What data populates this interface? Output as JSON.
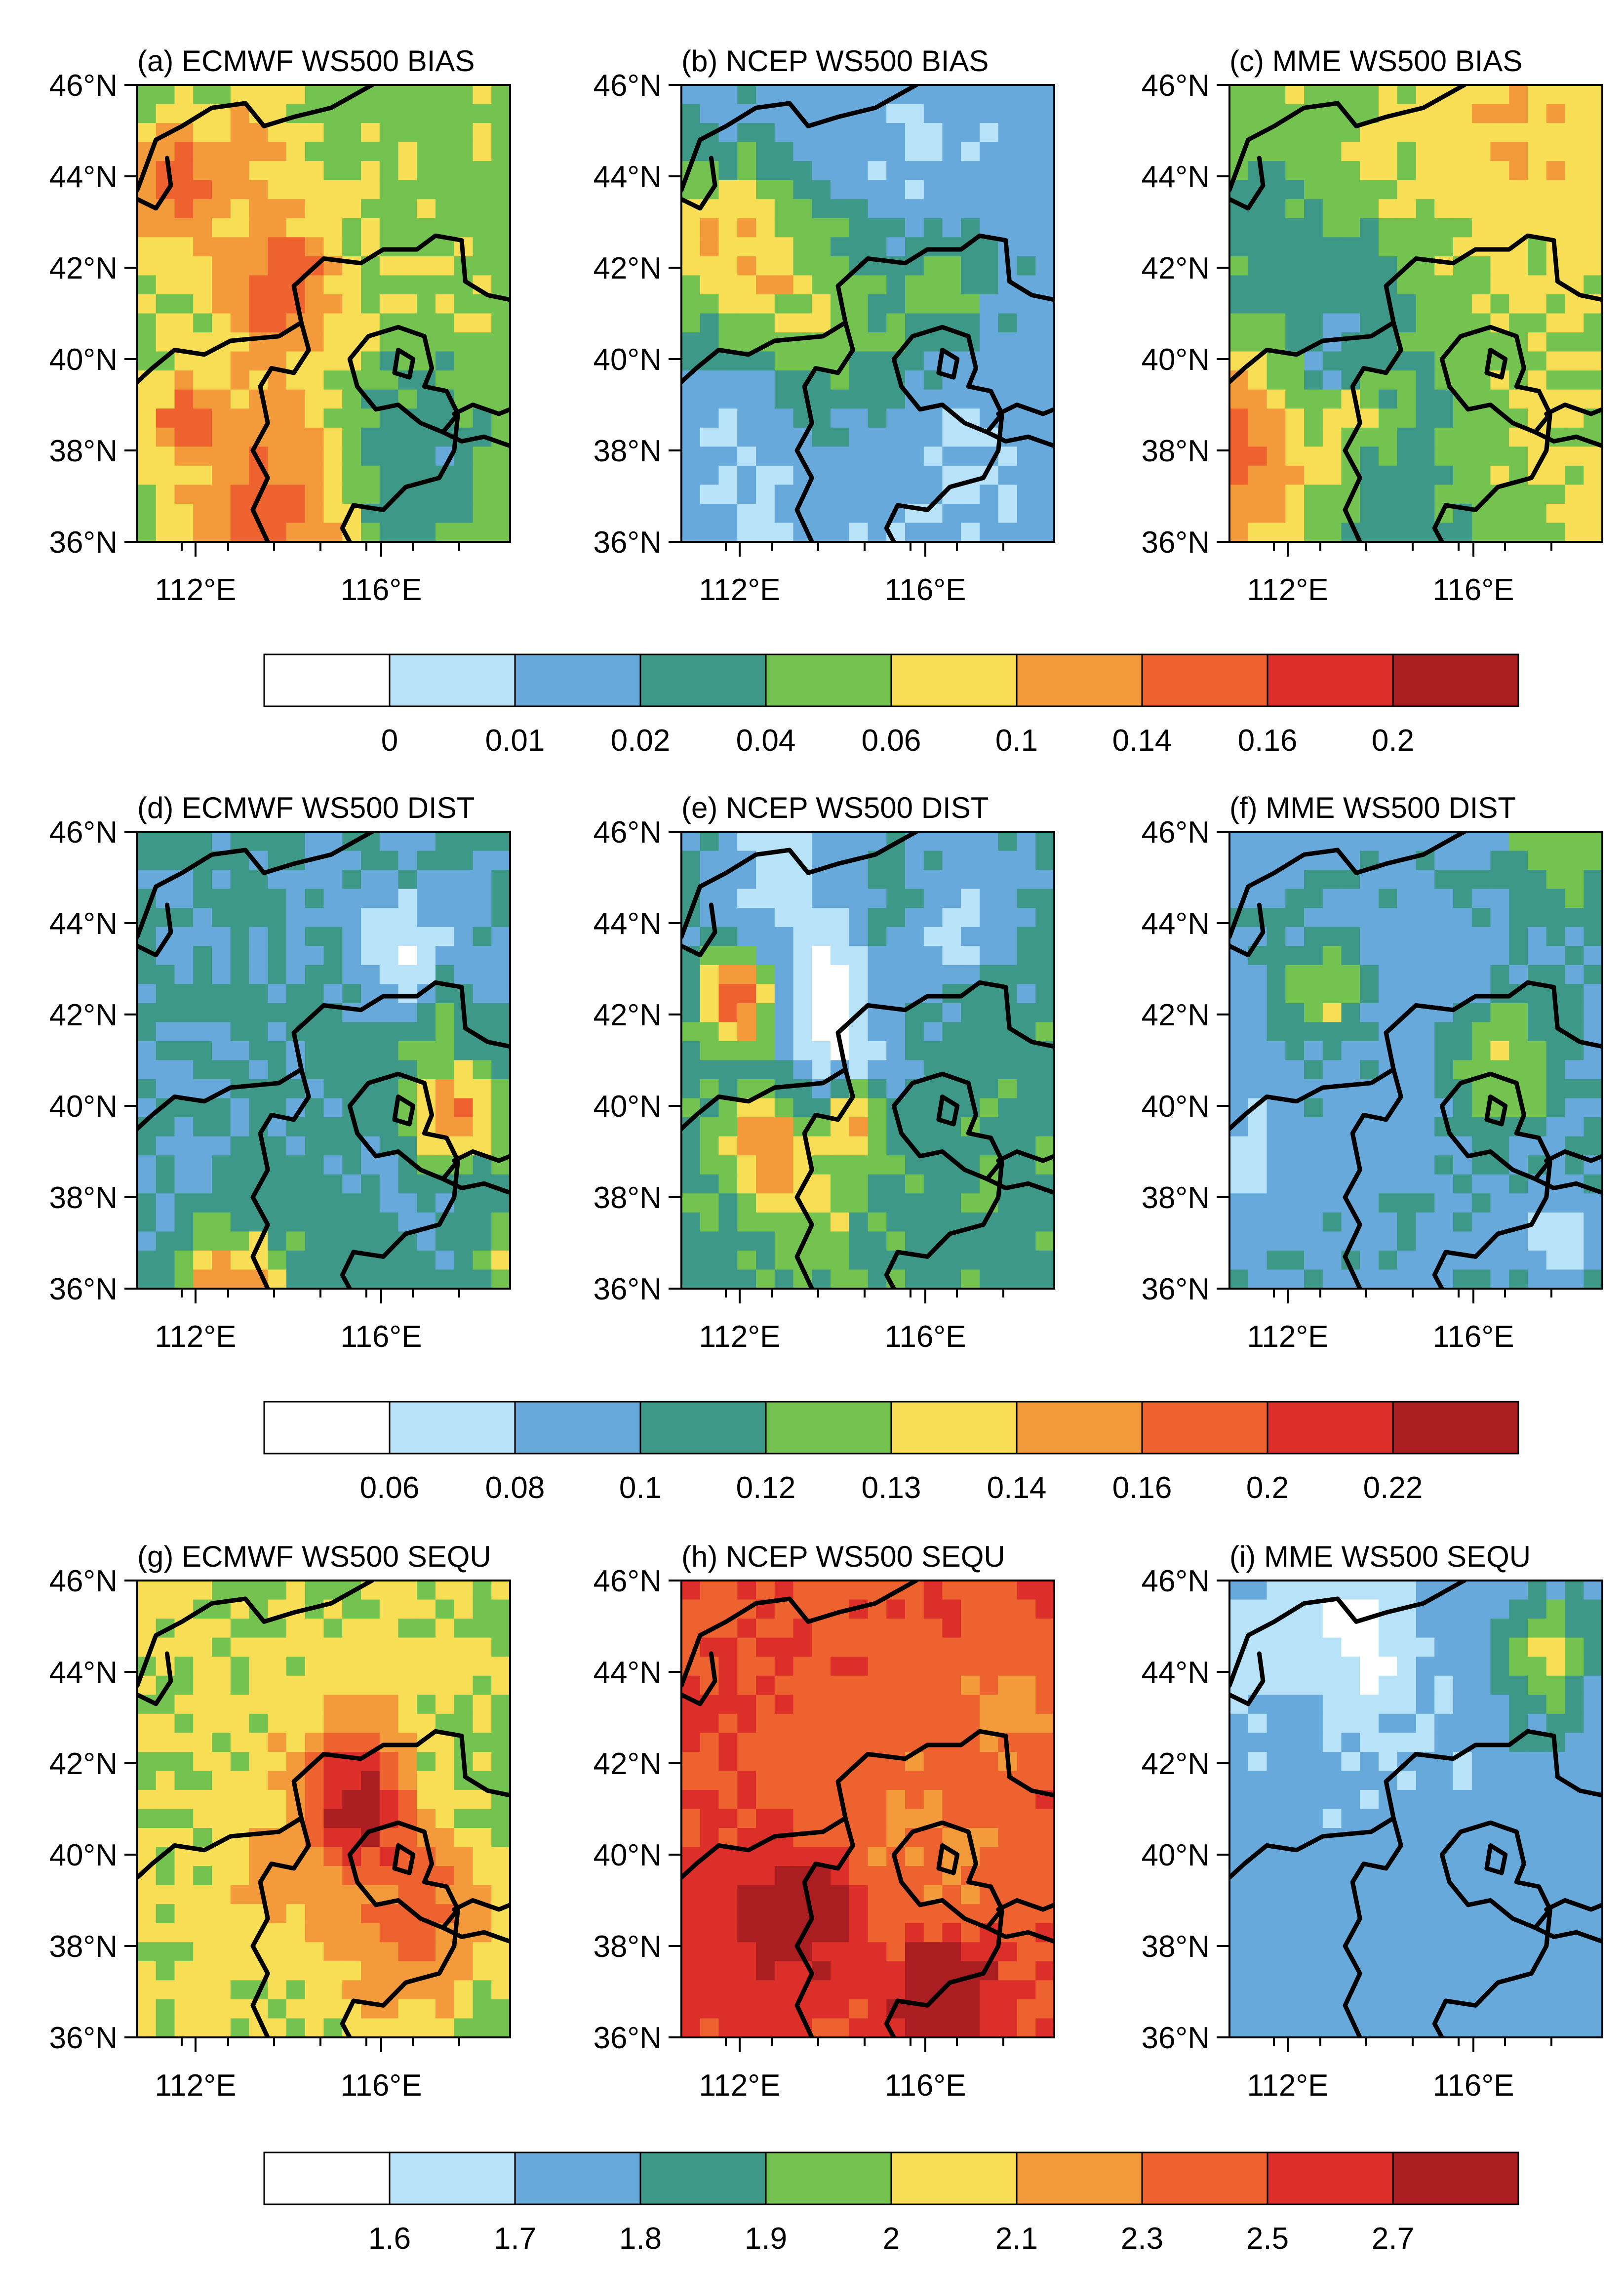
{
  "figure": {
    "rows": [
      {
        "panels": [
          {
            "title": "(a) ECMWF WS500 BIAS",
            "seed": 11,
            "base": 4.2,
            "spread": 3.2
          },
          {
            "title": "(b) NCEP WS500 BIAS",
            "seed": 23,
            "base": 2.0,
            "spread": 2.6
          },
          {
            "title": "(c) MME WS500 BIAS",
            "seed": 37,
            "base": 4.6,
            "spread": 3.8
          }
        ],
        "colorbar": {
          "labels": [
            "0",
            "0.01",
            "0.02",
            "0.04",
            "0.06",
            "0.1",
            "0.14",
            "0.16",
            "0.2"
          ]
        }
      },
      {
        "panels": [
          {
            "title": "(d) ECMWF WS500 DIST",
            "seed": 41,
            "base": 2.6,
            "spread": 3.4
          },
          {
            "title": "(e) NCEP WS500 DIST",
            "seed": 53,
            "base": 3.2,
            "spread": 4.2
          },
          {
            "title": "(f) MME WS500 DIST",
            "seed": 67,
            "base": 2.3,
            "spread": 3.6
          }
        ],
        "colorbar": {
          "labels": [
            "0.06",
            "0.08",
            "0.1",
            "0.12",
            "0.13",
            "0.14",
            "0.16",
            "0.2",
            "0.22"
          ]
        }
      },
      {
        "panels": [
          {
            "title": "(g) ECMWF WS500 SEQU",
            "seed": 71,
            "base": 4.6,
            "spread": 2.6
          },
          {
            "title": "(h) NCEP WS500 SEQU",
            "seed": 83,
            "base": 7.4,
            "spread": 1.6
          },
          {
            "title": "(i) MME WS500 SEQU",
            "seed": 97,
            "base": 2.0,
            "spread": 2.4
          }
        ],
        "colorbar": {
          "labels": [
            "1.6",
            "1.7",
            "1.8",
            "1.9",
            "2",
            "2.1",
            "2.3",
            "2.5",
            "2.7"
          ]
        }
      }
    ],
    "y_ticks": [
      "46°N",
      "44°N",
      "42°N",
      "40°N",
      "38°N",
      "36°N"
    ],
    "x_ticks": [
      "112°E",
      "116°E"
    ],
    "palette": [
      "#ffffff",
      "#b8e2f7",
      "#66a9da",
      "#3d9888",
      "#74c24f",
      "#f8de55",
      "#f39b3b",
      "#ee6230",
      "#dd2f2a",
      "#aa1e22"
    ]
  }
}
